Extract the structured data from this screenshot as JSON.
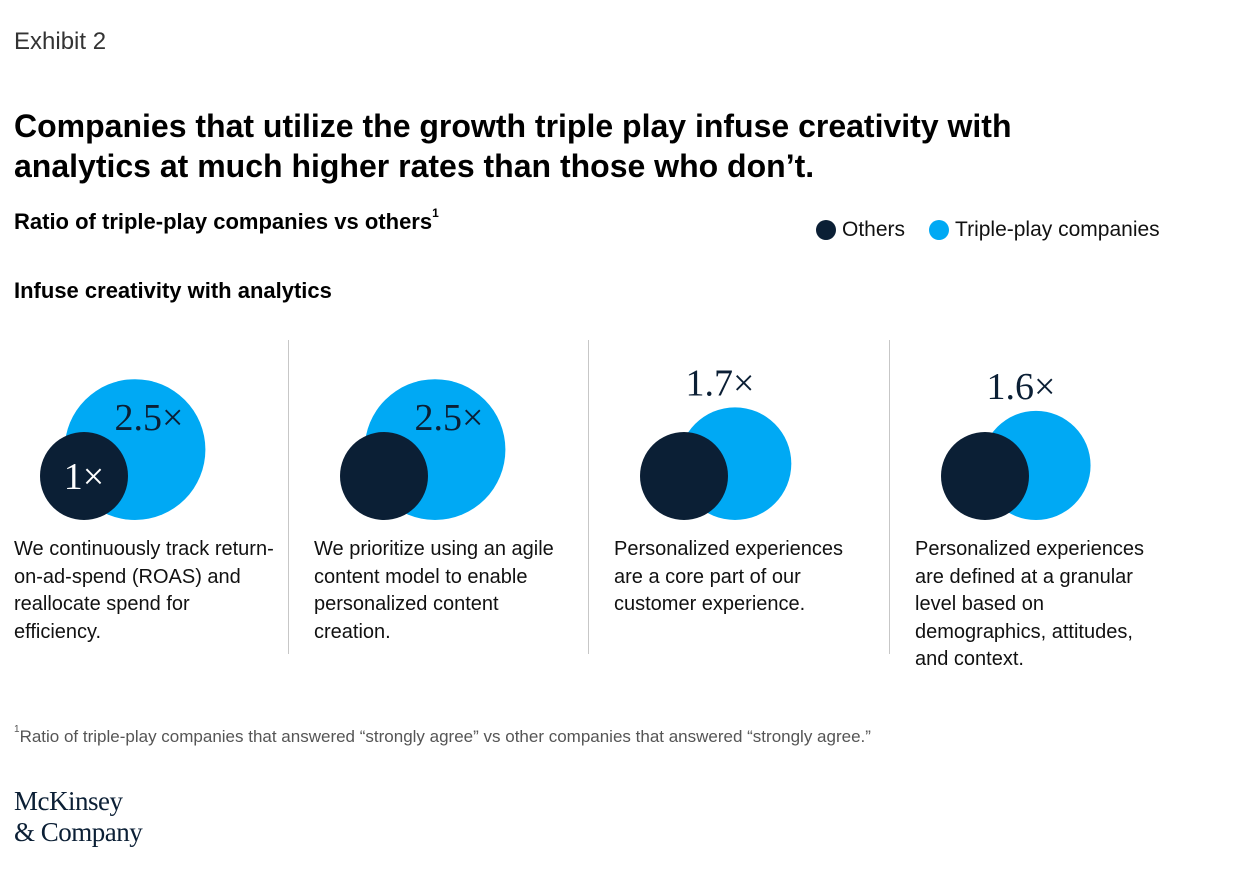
{
  "exhibit_label": "Exhibit 2",
  "headline": "Companies that utilize the growth triple play infuse creativity with analytics at much higher rates than those who don’t.",
  "subtitle": "Ratio of triple-play companies vs others",
  "subtitle_footnote_marker": "1",
  "section_title": "Infuse creativity with analytics",
  "colors": {
    "others": "#0b1f35",
    "triple_play": "#00a9f4"
  },
  "chart_data": {
    "type": "bubble-comparison",
    "title": "Ratio of triple-play companies vs others",
    "section": "Infuse creativity with analytics",
    "series": [
      {
        "name": "Others",
        "color": "#0b1f35"
      },
      {
        "name": "Triple-play companies",
        "color": "#00a9f4"
      }
    ],
    "items": [
      {
        "statement": "We continuously track return-on-ad-spend (ROAS) and reallocate spend for efficiency.",
        "ratio": 2.5,
        "ratio_label": "2.5×",
        "others_label": "1×"
      },
      {
        "statement": "We prioritize using an agile content model to enable personalized content creation.",
        "ratio": 2.5,
        "ratio_label": "2.5×",
        "others_label": ""
      },
      {
        "statement": "Personalized experiences are a core part of our customer experience.",
        "ratio": 1.7,
        "ratio_label": "1.7×",
        "others_label": ""
      },
      {
        "statement": "Personalized experiences are defined at a granular level based on demographics, attitudes, and context.",
        "ratio": 1.6,
        "ratio_label": "1.6×",
        "others_label": ""
      }
    ]
  },
  "footnote_marker": "1",
  "footnote": "Ratio of triple-play companies that answered “strongly agree” vs other companies that answered “strongly agree.”",
  "logo_line1": "McKinsey",
  "logo_line2": "& Company"
}
